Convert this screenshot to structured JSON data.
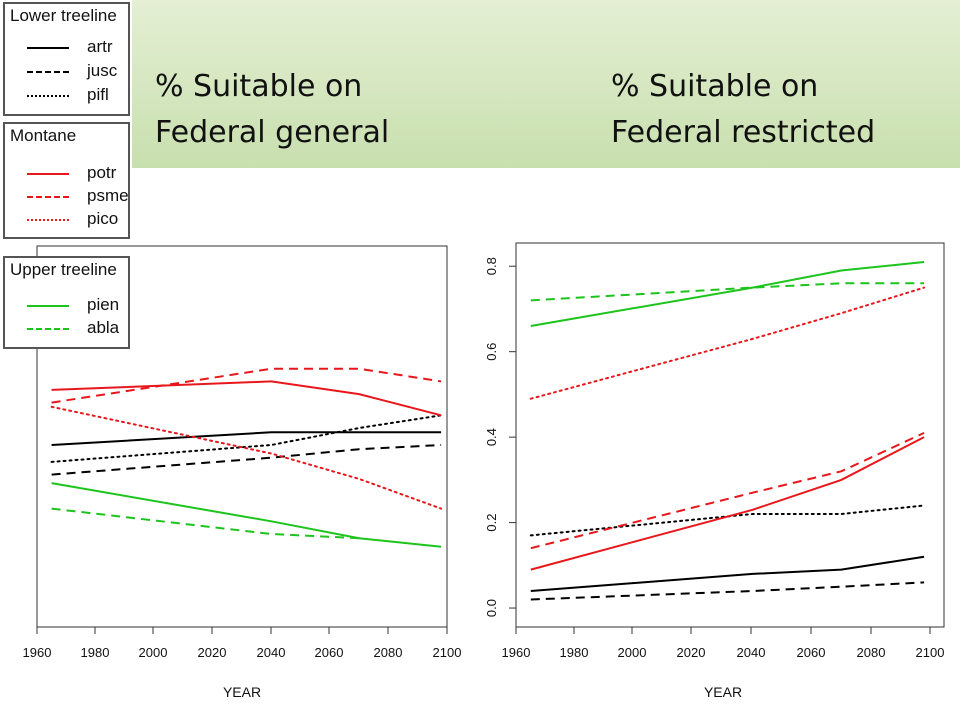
{
  "titles": {
    "left": "% Suitable on\nFederal general",
    "right": "% Suitable on\nFederal restricted"
  },
  "legends": [
    {
      "title": "Lower treeline",
      "items": [
        {
          "label": "artr",
          "color": "#000000",
          "dash": "solid"
        },
        {
          "label": "jusc",
          "color": "#000000",
          "dash": "dashed"
        },
        {
          "label": "pifl",
          "color": "#000000",
          "dash": "dotted"
        }
      ]
    },
    {
      "title": "Montane",
      "items": [
        {
          "label": "potr",
          "color": "#e8171b",
          "dash": "solid"
        },
        {
          "label": "psme",
          "color": "#e8171b",
          "dash": "dashed"
        },
        {
          "label": "pico",
          "color": "#e8171b",
          "dash": "dotted"
        }
      ]
    },
    {
      "title": "Upper treeline",
      "items": [
        {
          "label": "pien",
          "color": "#1cc41c",
          "dash": "solid"
        },
        {
          "label": "abla",
          "color": "#1cc41c",
          "dash": "dashed"
        }
      ]
    }
  ],
  "chart_data": [
    {
      "type": "line",
      "title": "% Suitable on Federal general",
      "xlabel": "YEAR",
      "ylabel": "",
      "xlim": [
        1960,
        2100
      ],
      "ylim": [
        0,
        0.88
      ],
      "xticks": [
        1960,
        1980,
        2000,
        2020,
        2040,
        2060,
        2080,
        2100
      ],
      "yticks": [],
      "series": [
        {
          "name": "artr",
          "color": "#000000",
          "dash": "solid",
          "x": [
            1965,
            2040,
            2070,
            2098
          ],
          "y": [
            0.42,
            0.45,
            0.45,
            0.45
          ]
        },
        {
          "name": "jusc",
          "color": "#000000",
          "dash": "dashed",
          "x": [
            1965,
            2040,
            2070,
            2098
          ],
          "y": [
            0.35,
            0.39,
            0.41,
            0.42
          ]
        },
        {
          "name": "pifl",
          "color": "#000000",
          "dash": "dotted",
          "x": [
            1965,
            2040,
            2070,
            2098
          ],
          "y": [
            0.38,
            0.42,
            0.46,
            0.49
          ]
        },
        {
          "name": "potr",
          "color": "#e8171b",
          "dash": "solid",
          "x": [
            1965,
            2040,
            2070,
            2098
          ],
          "y": [
            0.55,
            0.57,
            0.54,
            0.49
          ]
        },
        {
          "name": "psme",
          "color": "#e8171b",
          "dash": "dashed",
          "x": [
            1965,
            2040,
            2070,
            2098
          ],
          "y": [
            0.52,
            0.6,
            0.6,
            0.57
          ]
        },
        {
          "name": "pico",
          "color": "#e8171b",
          "dash": "dotted",
          "x": [
            1965,
            2040,
            2070,
            2098
          ],
          "y": [
            0.51,
            0.4,
            0.34,
            0.27
          ]
        },
        {
          "name": "pien",
          "color": "#1cc41c",
          "dash": "solid",
          "x": [
            1965,
            2040,
            2070,
            2098
          ],
          "y": [
            0.33,
            0.24,
            0.2,
            0.18
          ]
        },
        {
          "name": "abla",
          "color": "#1cc41c",
          "dash": "dashed",
          "x": [
            1965,
            2040,
            2070
          ],
          "y": [
            0.27,
            0.21,
            0.2
          ]
        }
      ]
    },
    {
      "type": "line",
      "title": "% Suitable on Federal restricted",
      "xlabel": "YEAR",
      "ylabel": "",
      "xlim": [
        1960,
        2100
      ],
      "ylim": [
        -0.035,
        0.845
      ],
      "xticks": [
        1960,
        1980,
        2000,
        2020,
        2040,
        2060,
        2080,
        2100
      ],
      "yticks": [
        0.0,
        0.2,
        0.4,
        0.6,
        0.8
      ],
      "series": [
        {
          "name": "artr",
          "color": "#000000",
          "dash": "solid",
          "x": [
            1965,
            2040,
            2070,
            2098
          ],
          "y": [
            0.04,
            0.08,
            0.09,
            0.12
          ]
        },
        {
          "name": "jusc",
          "color": "#000000",
          "dash": "dashed",
          "x": [
            1965,
            2040,
            2070,
            2098
          ],
          "y": [
            0.02,
            0.04,
            0.05,
            0.06
          ]
        },
        {
          "name": "pifl",
          "color": "#000000",
          "dash": "dotted",
          "x": [
            1965,
            2040,
            2070,
            2098
          ],
          "y": [
            0.17,
            0.22,
            0.22,
            0.24
          ]
        },
        {
          "name": "potr",
          "color": "#e8171b",
          "dash": "solid",
          "x": [
            1965,
            2040,
            2070,
            2098
          ],
          "y": [
            0.09,
            0.23,
            0.3,
            0.4
          ]
        },
        {
          "name": "psme",
          "color": "#e8171b",
          "dash": "dashed",
          "x": [
            1965,
            2040,
            2070,
            2098
          ],
          "y": [
            0.14,
            0.27,
            0.32,
            0.41
          ]
        },
        {
          "name": "pico",
          "color": "#e8171b",
          "dash": "dotted",
          "x": [
            1965,
            2040,
            2070,
            2098
          ],
          "y": [
            0.49,
            0.63,
            0.69,
            0.75
          ]
        },
        {
          "name": "pien",
          "color": "#1cc41c",
          "dash": "solid",
          "x": [
            1965,
            2040,
            2070,
            2098
          ],
          "y": [
            0.66,
            0.75,
            0.79,
            0.81
          ]
        },
        {
          "name": "abla",
          "color": "#1cc41c",
          "dash": "dashed",
          "x": [
            1965,
            2040,
            2070,
            2098
          ],
          "y": [
            0.72,
            0.75,
            0.76,
            0.76
          ]
        }
      ]
    }
  ]
}
